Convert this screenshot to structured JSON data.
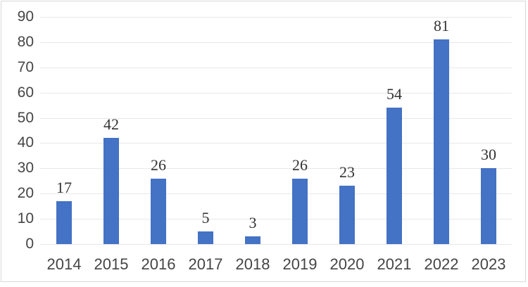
{
  "chart_data": {
    "type": "bar",
    "title": "",
    "xlabel": "",
    "ylabel": "",
    "categories": [
      "2014",
      "2015",
      "2016",
      "2017",
      "2018",
      "2019",
      "2020",
      "2021",
      "2022",
      "2023"
    ],
    "values": [
      17,
      42,
      26,
      5,
      3,
      26,
      23,
      54,
      81,
      30
    ],
    "data_labels": [
      "17",
      "42",
      "26",
      "5",
      "3",
      "26",
      "23",
      "54",
      "81",
      "30"
    ],
    "ylim": [
      0,
      90
    ],
    "ytick_step": 10,
    "ytick_labels": [
      "0",
      "10",
      "20",
      "30",
      "40",
      "50",
      "60",
      "70",
      "80",
      "90"
    ],
    "grid": true,
    "legend": false,
    "colors": {
      "bar": "#4472C4",
      "gridline": "#e8e8e8",
      "axis_text": "#454545",
      "data_label_text": "#333333",
      "border": "#d9d9d9",
      "background": "#ffffff"
    }
  }
}
